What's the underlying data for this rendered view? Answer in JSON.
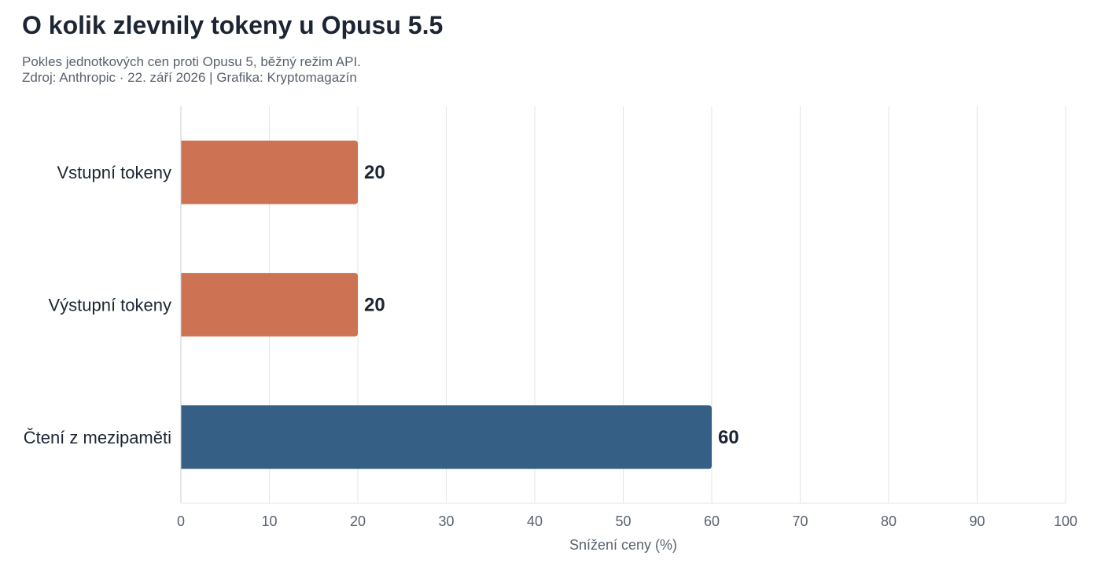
{
  "chart_data": {
    "type": "bar",
    "orientation": "horizontal",
    "title": "O kolik zlevnily tokeny u Opusu 5.5",
    "subtitle_lines": [
      "Pokles jednotkových cen proti Opusu 5, běžný režim API.",
      "Zdroj: Anthropic · 22. září 2026 | Grafika: Kryptomagazín"
    ],
    "categories": [
      "Vstupní tokeny",
      "Výstupní tokeny",
      "Čtení z mezipaměti"
    ],
    "values": [
      20,
      20,
      60
    ],
    "bar_colors": [
      "#cd7353",
      "#cd7353",
      "#355f85"
    ],
    "xlabel": "Snížení ceny (%)",
    "ylabel": "",
    "xlim": [
      0,
      100
    ],
    "xticks": [
      0,
      10,
      20,
      30,
      40,
      50,
      60,
      70,
      80,
      90,
      100
    ],
    "grid": "vertical"
  }
}
